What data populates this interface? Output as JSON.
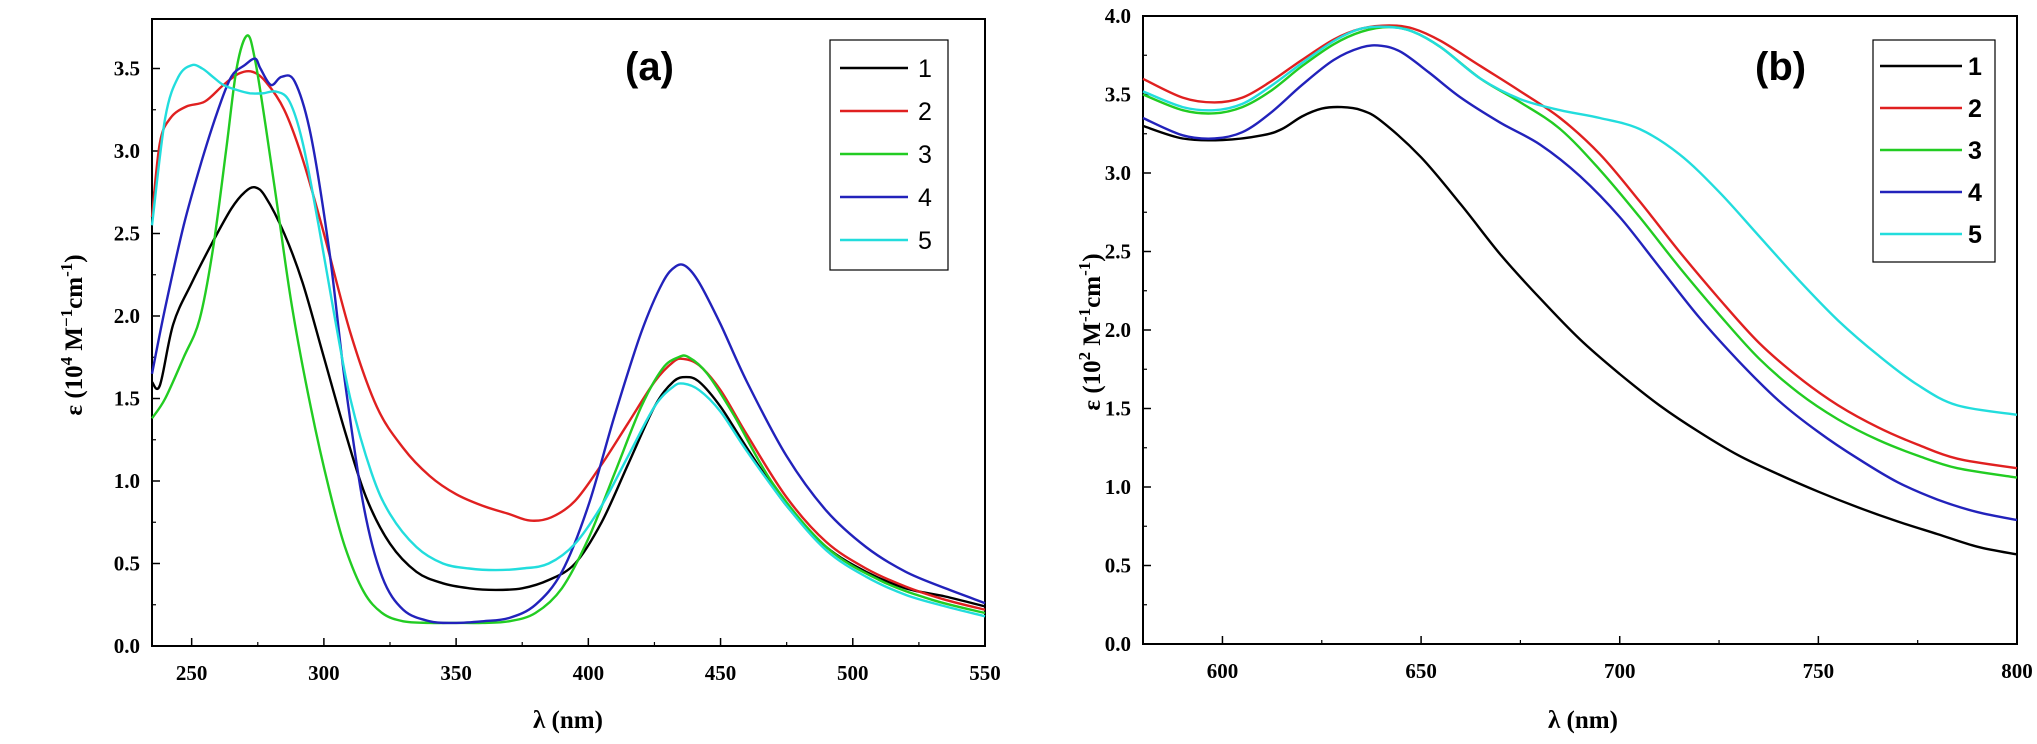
{
  "chart_data": [
    {
      "type": "line",
      "panel_label": "(a)",
      "xlabel": "λ (nm)",
      "ylabel_parts": {
        "base": "ε (10",
        "sup1": "4",
        "mid": " M",
        "sup2": "−1",
        "mid2": "cm",
        "sup3": "-1",
        "end": ")"
      },
      "xlim": [
        235,
        550
      ],
      "ylim": [
        0,
        3.8
      ],
      "xticks": [
        250,
        300,
        350,
        400,
        450,
        500,
        550
      ],
      "yticks": [
        "0.0",
        "0.5",
        "1.0",
        "1.5",
        "2.0",
        "2.5",
        "3.0",
        "3.5"
      ],
      "legend_position": "top-right",
      "series": [
        {
          "name": "1",
          "color": "#000000",
          "x": [
            235,
            238,
            243,
            250,
            258,
            265,
            270,
            274,
            278,
            285,
            292,
            300,
            308,
            316,
            325,
            335,
            345,
            355,
            365,
            375,
            385,
            395,
            405,
            415,
            425,
            432,
            437,
            442,
            450,
            460,
            475,
            490,
            505,
            520,
            535,
            550
          ],
          "y": [
            1.6,
            1.58,
            1.95,
            2.2,
            2.45,
            2.65,
            2.75,
            2.78,
            2.72,
            2.5,
            2.2,
            1.75,
            1.3,
            0.9,
            0.62,
            0.45,
            0.38,
            0.35,
            0.34,
            0.35,
            0.4,
            0.5,
            0.75,
            1.1,
            1.45,
            1.6,
            1.63,
            1.6,
            1.45,
            1.2,
            0.85,
            0.6,
            0.45,
            0.35,
            0.3,
            0.24
          ]
        },
        {
          "name": "2",
          "color": "#e02020",
          "x": [
            235,
            238,
            242,
            248,
            255,
            262,
            268,
            273,
            278,
            285,
            292,
            300,
            310,
            320,
            330,
            340,
            350,
            360,
            370,
            378,
            386,
            395,
            405,
            415,
            425,
            432,
            436,
            442,
            450,
            460,
            475,
            490,
            505,
            520,
            535,
            550
          ],
          "y": [
            2.6,
            3.05,
            3.2,
            3.27,
            3.3,
            3.4,
            3.47,
            3.48,
            3.42,
            3.25,
            2.95,
            2.5,
            1.9,
            1.45,
            1.2,
            1.03,
            0.92,
            0.85,
            0.8,
            0.76,
            0.78,
            0.88,
            1.1,
            1.35,
            1.6,
            1.72,
            1.74,
            1.7,
            1.55,
            1.28,
            0.9,
            0.63,
            0.47,
            0.36,
            0.28,
            0.22
          ]
        },
        {
          "name": "3",
          "color": "#22cc22",
          "x": [
            235,
            240,
            247,
            253,
            258,
            263,
            267,
            271,
            274,
            278,
            283,
            288,
            295,
            302,
            308,
            315,
            322,
            330,
            340,
            350,
            360,
            370,
            380,
            390,
            400,
            410,
            420,
            428,
            434,
            438,
            445,
            455,
            470,
            490,
            510,
            530,
            550
          ],
          "y": [
            1.38,
            1.5,
            1.75,
            1.98,
            2.4,
            3.0,
            3.5,
            3.7,
            3.55,
            3.15,
            2.6,
            2.05,
            1.45,
            0.95,
            0.6,
            0.33,
            0.2,
            0.15,
            0.14,
            0.14,
            0.14,
            0.15,
            0.2,
            0.35,
            0.65,
            1.05,
            1.45,
            1.68,
            1.75,
            1.75,
            1.65,
            1.4,
            0.98,
            0.6,
            0.4,
            0.28,
            0.2
          ]
        },
        {
          "name": "4",
          "color": "#2222bb",
          "x": [
            235,
            240,
            247,
            254,
            260,
            265,
            270,
            274,
            276,
            280,
            284,
            289,
            295,
            302,
            308,
            315,
            322,
            330,
            340,
            350,
            360,
            370,
            380,
            390,
            400,
            410,
            420,
            428,
            433,
            437,
            442,
            450,
            460,
            475,
            490,
            505,
            520,
            535,
            550
          ],
          "y": [
            1.65,
            2.05,
            2.55,
            2.95,
            3.25,
            3.45,
            3.52,
            3.56,
            3.5,
            3.4,
            3.45,
            3.42,
            3.1,
            2.4,
            1.6,
            0.85,
            0.42,
            0.22,
            0.15,
            0.14,
            0.15,
            0.17,
            0.25,
            0.45,
            0.85,
            1.4,
            1.9,
            2.2,
            2.3,
            2.3,
            2.2,
            1.95,
            1.6,
            1.15,
            0.82,
            0.6,
            0.45,
            0.35,
            0.26
          ]
        },
        {
          "name": "5",
          "color": "#22dddd",
          "x": [
            235,
            240,
            245,
            250,
            254,
            258,
            262,
            267,
            272,
            277,
            282,
            287,
            292,
            298,
            304,
            310,
            318,
            325,
            335,
            345,
            355,
            365,
            375,
            385,
            395,
            405,
            415,
            425,
            432,
            436,
            442,
            450,
            460,
            475,
            490,
            505,
            520,
            535,
            550
          ],
          "y": [
            2.55,
            3.2,
            3.45,
            3.52,
            3.5,
            3.45,
            3.4,
            3.37,
            3.35,
            3.35,
            3.36,
            3.3,
            3.05,
            2.55,
            2.0,
            1.5,
            1.05,
            0.8,
            0.6,
            0.5,
            0.47,
            0.46,
            0.47,
            0.5,
            0.62,
            0.85,
            1.15,
            1.45,
            1.57,
            1.59,
            1.55,
            1.42,
            1.18,
            0.85,
            0.58,
            0.42,
            0.31,
            0.24,
            0.18
          ]
        }
      ]
    },
    {
      "type": "line",
      "panel_label": "(b)",
      "xlabel": "λ (nm)",
      "ylabel_parts": {
        "base": "ε (10",
        "sup1": "2",
        "mid": " M",
        "sup2": "-1",
        "mid2": "cm",
        "sup3": "-1",
        "end": ")"
      },
      "xlim": [
        580,
        800
      ],
      "ylim": [
        0,
        4.0
      ],
      "xticks": [
        600,
        650,
        700,
        750,
        800
      ],
      "yticks": [
        "0.0",
        "0.5",
        "1.0",
        "1.5",
        "2.0",
        "2.5",
        "3.0",
        "3.5",
        "4.0"
      ],
      "legend_position": "top-right",
      "series": [
        {
          "name": "1",
          "color": "#000000",
          "x": [
            580,
            590,
            600,
            610,
            615,
            620,
            625,
            630,
            635,
            640,
            650,
            660,
            670,
            680,
            690,
            700,
            710,
            720,
            730,
            740,
            750,
            760,
            770,
            780,
            790,
            800
          ],
          "y": [
            3.3,
            3.22,
            3.21,
            3.24,
            3.28,
            3.36,
            3.41,
            3.42,
            3.4,
            3.33,
            3.1,
            2.8,
            2.48,
            2.2,
            1.94,
            1.72,
            1.52,
            1.35,
            1.2,
            1.08,
            0.97,
            0.87,
            0.78,
            0.7,
            0.62,
            0.57
          ]
        },
        {
          "name": "2",
          "color": "#e02020",
          "x": [
            580,
            590,
            598,
            605,
            612,
            620,
            628,
            635,
            642,
            648,
            655,
            665,
            675,
            685,
            695,
            705,
            715,
            725,
            735,
            745,
            755,
            765,
            775,
            785,
            800
          ],
          "y": [
            3.6,
            3.48,
            3.45,
            3.48,
            3.58,
            3.72,
            3.85,
            3.92,
            3.94,
            3.92,
            3.84,
            3.68,
            3.52,
            3.35,
            3.12,
            2.82,
            2.5,
            2.2,
            1.92,
            1.7,
            1.52,
            1.38,
            1.27,
            1.18,
            1.12
          ]
        },
        {
          "name": "3",
          "color": "#22cc22",
          "x": [
            580,
            590,
            598,
            605,
            612,
            620,
            628,
            635,
            642,
            648,
            655,
            665,
            675,
            685,
            695,
            705,
            715,
            725,
            735,
            745,
            755,
            765,
            775,
            785,
            800
          ],
          "y": [
            3.5,
            3.4,
            3.38,
            3.42,
            3.52,
            3.68,
            3.82,
            3.9,
            3.93,
            3.9,
            3.8,
            3.6,
            3.45,
            3.28,
            3.02,
            2.72,
            2.4,
            2.1,
            1.82,
            1.6,
            1.43,
            1.3,
            1.2,
            1.12,
            1.06
          ]
        },
        {
          "name": "4",
          "color": "#2222bb",
          "x": [
            580,
            590,
            598,
            605,
            612,
            620,
            628,
            635,
            640,
            645,
            652,
            660,
            670,
            680,
            690,
            700,
            710,
            720,
            730,
            740,
            750,
            760,
            770,
            780,
            790,
            800
          ],
          "y": [
            3.35,
            3.24,
            3.22,
            3.26,
            3.38,
            3.56,
            3.72,
            3.8,
            3.81,
            3.77,
            3.64,
            3.48,
            3.32,
            3.18,
            2.98,
            2.72,
            2.4,
            2.08,
            1.8,
            1.55,
            1.35,
            1.18,
            1.03,
            0.92,
            0.84,
            0.79
          ]
        },
        {
          "name": "5",
          "color": "#22dddd",
          "x": [
            580,
            590,
            598,
            605,
            612,
            620,
            628,
            635,
            642,
            648,
            655,
            665,
            675,
            685,
            695,
            705,
            715,
            725,
            735,
            745,
            755,
            765,
            775,
            785,
            800
          ],
          "y": [
            3.52,
            3.42,
            3.4,
            3.44,
            3.55,
            3.7,
            3.84,
            3.92,
            3.93,
            3.9,
            3.8,
            3.6,
            3.47,
            3.4,
            3.35,
            3.28,
            3.12,
            2.88,
            2.6,
            2.32,
            2.06,
            1.84,
            1.65,
            1.52,
            1.46
          ]
        }
      ]
    }
  ]
}
